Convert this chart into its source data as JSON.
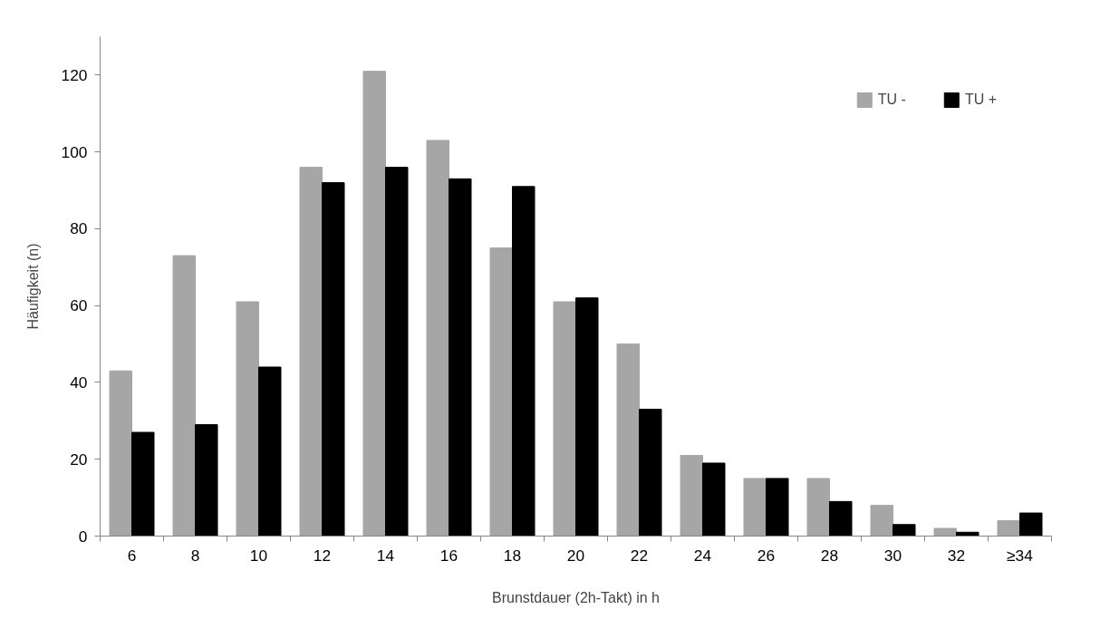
{
  "chart_data": {
    "type": "bar",
    "xlabel": "Brunstdauer (2h-Takt) in h",
    "ylabel": "Häufigkeit (n)",
    "categories": [
      "6",
      "8",
      "10",
      "12",
      "14",
      "16",
      "18",
      "20",
      "22",
      "24",
      "26",
      "28",
      "30",
      "32",
      "≥34"
    ],
    "series": [
      {
        "name": "TU -",
        "color": "#a6a6a6",
        "values": [
          43,
          73,
          61,
          96,
          121,
          103,
          75,
          61,
          50,
          21,
          15,
          15,
          8,
          2,
          4
        ]
      },
      {
        "name": "TU +",
        "color": "#000000",
        "values": [
          27,
          29,
          44,
          92,
          96,
          93,
          91,
          62,
          33,
          19,
          15,
          9,
          3,
          1,
          6
        ]
      }
    ],
    "ylim": [
      0,
      130
    ],
    "yticks": [
      0,
      20,
      40,
      60,
      80,
      100,
      120
    ],
    "grid": false,
    "legend": "top right"
  }
}
